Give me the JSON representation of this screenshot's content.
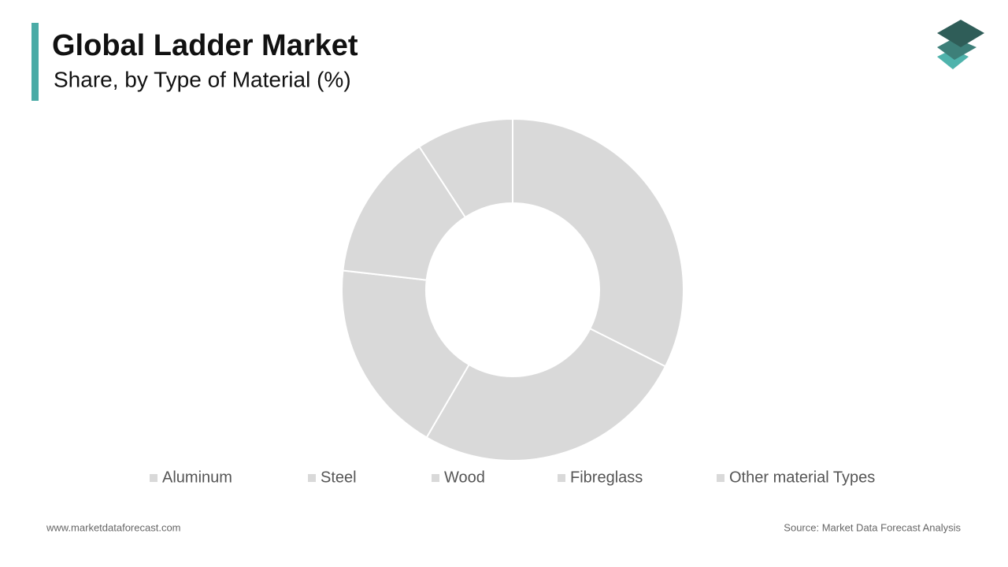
{
  "chart_data": {
    "type": "donut",
    "title": "Global Ladder Market",
    "subtitle": "Share, by Type of Material (%)",
    "categories": [
      "Aluminum",
      "Steel",
      "Wood",
      "Fibreglass",
      "Other material Types"
    ],
    "values": [
      32.4,
      26,
      18.4,
      14,
      9.2
    ],
    "color": "#d9d9d9"
  },
  "footer": {
    "website": "www.marketdataforecast.com",
    "source": "Source: Market Data Forecast Analysis"
  }
}
